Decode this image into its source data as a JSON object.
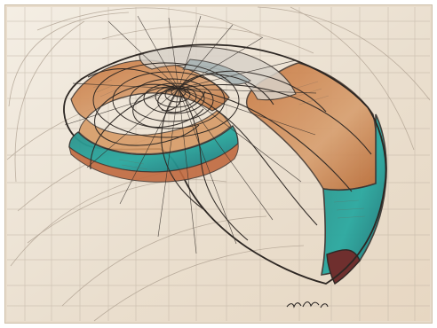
{
  "artwork": {
    "paper_color": "#eadfcf",
    "ink_color": "#3a332d",
    "faint_ink_color": "#9b8f84",
    "orange_color": "#d08b53",
    "teal_color": "#2a9a8f",
    "dark_red_color": "#7b2f30"
  }
}
